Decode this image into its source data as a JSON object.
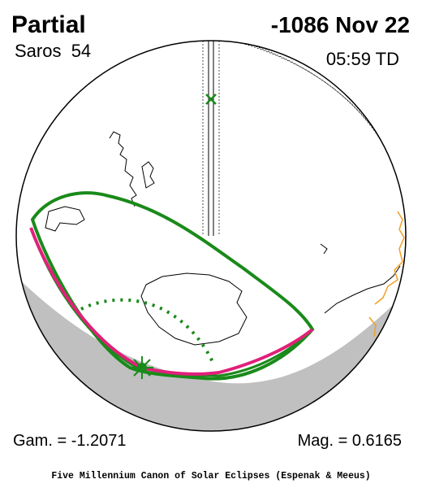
{
  "header": {
    "title": "Partial",
    "saros": "Saros  54",
    "date": "-1086 Nov 22",
    "time": "05:59 TD"
  },
  "footer": {
    "gamma": "Gam. = -1.2071",
    "magnitude": "Mag. = 0.6165",
    "credit": "Five Millennium Canon of Solar Eclipses (Espenak & Meeus)"
  }
}
